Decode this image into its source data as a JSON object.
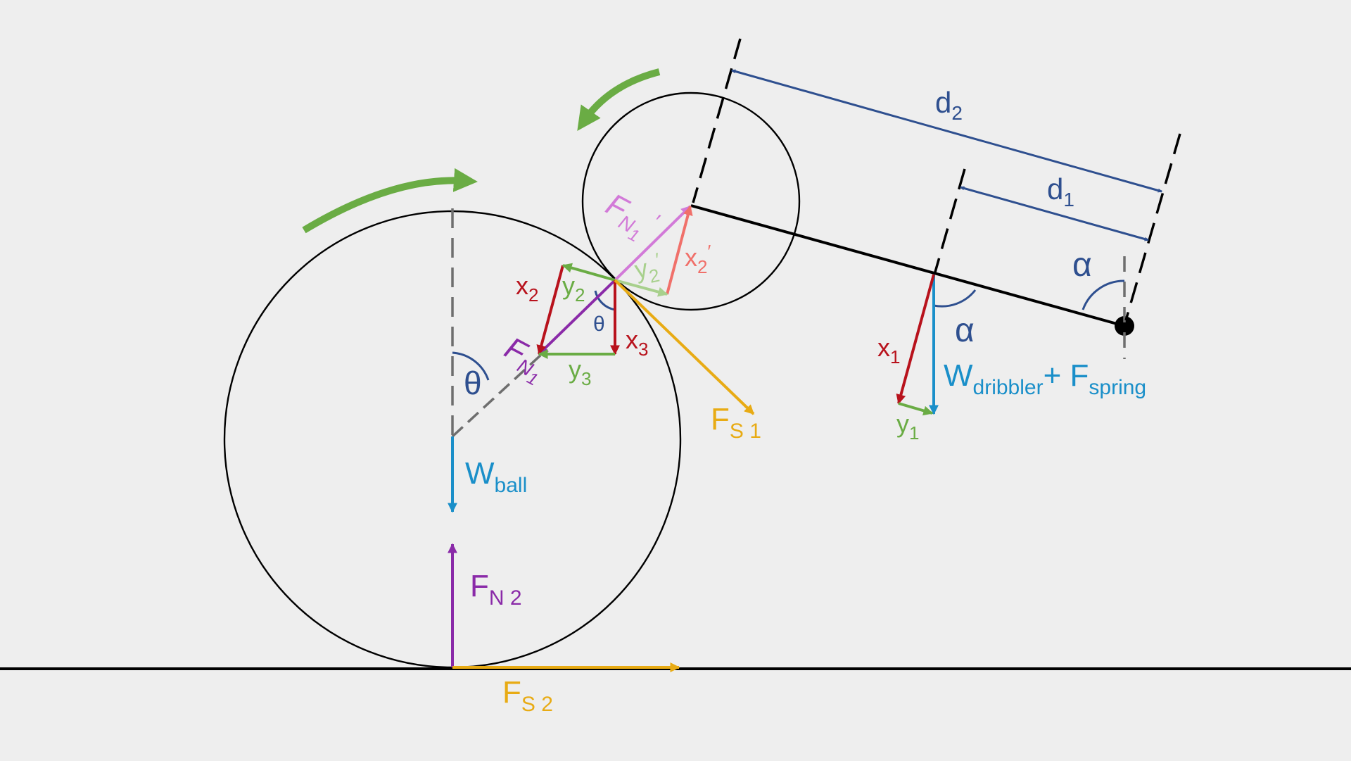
{
  "colors": {
    "background": "#eeeeee",
    "black": "#000000",
    "gray_dash": "#6e6e6e",
    "navy": "#2e4f8f",
    "blue": "#1a8fc9",
    "green": "#6aac44",
    "light_green": "#a8d08d",
    "red": "#b8121c",
    "salmon": "#f0706a",
    "purple": "#8a2aa8",
    "pink": "#d27ad8",
    "yellow": "#e8ab14"
  },
  "labels": {
    "d2": {
      "main": "d",
      "sub": "2",
      "sup": ""
    },
    "d1": {
      "main": "d",
      "sub": "1",
      "sup": ""
    },
    "alpha_top": {
      "main": "α",
      "sub": "",
      "sup": ""
    },
    "alpha_mid": {
      "main": "α",
      "sub": "",
      "sup": ""
    },
    "theta_big": {
      "main": "θ",
      "sub": "",
      "sup": ""
    },
    "theta_small": {
      "main": "θ",
      "sub": "",
      "sup": ""
    },
    "fn1_prime": {
      "main": "F",
      "sub": "N",
      "sub2": "1",
      "sup": "′"
    },
    "fn1": {
      "main": "F",
      "sub": "N",
      "sub2": "1",
      "sup": ""
    },
    "fn2": {
      "main": "F",
      "sub": "N 2",
      "sup": ""
    },
    "fs1": {
      "main": "F",
      "sub": "S 1",
      "sup": ""
    },
    "fs2": {
      "main": "F",
      "sub": "S 2",
      "sup": ""
    },
    "x1": {
      "main": "x",
      "sub": "1",
      "sup": ""
    },
    "x2": {
      "main": "x",
      "sub": "2",
      "sup": ""
    },
    "x2_prime": {
      "main": "x",
      "sub": "2",
      "sup": "′"
    },
    "x3": {
      "main": "x",
      "sub": "3",
      "sup": ""
    },
    "y1": {
      "main": "y",
      "sub": "1",
      "sup": ""
    },
    "y2": {
      "main": "y",
      "sub": "2",
      "sup": ""
    },
    "y2_prime": {
      "main": "y",
      "sub": "2",
      "sup": "′"
    },
    "y3": {
      "main": "y",
      "sub": "3",
      "sup": ""
    },
    "w_ball": {
      "main": "W",
      "sub": "ball",
      "sup": ""
    },
    "w_dribbler": {
      "main": "W",
      "sub": "dribbler",
      "plus": "+ ",
      "main2": "F",
      "sub2": "spring"
    }
  }
}
